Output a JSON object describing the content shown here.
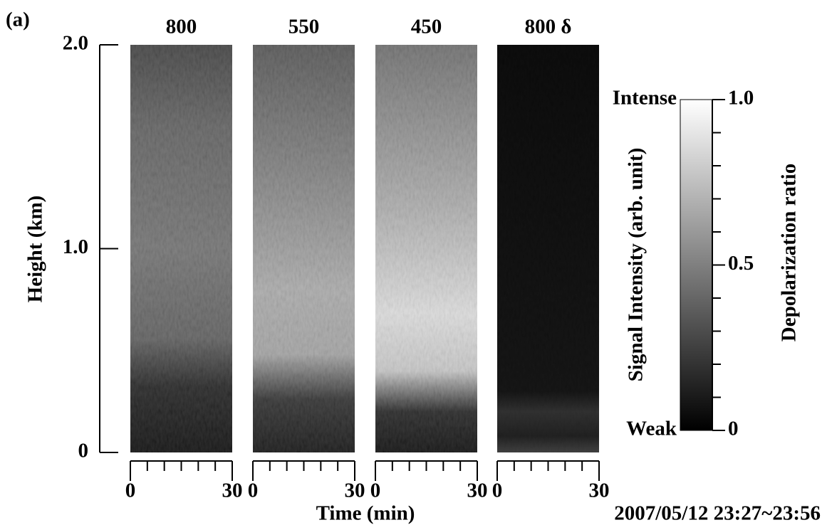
{
  "chart_data": {
    "type": "heatmap",
    "label": "(a)",
    "panels": [
      "800",
      "550",
      "450",
      "800 δ"
    ],
    "ylabel": "Height (km)",
    "ylim": [
      0,
      2.0
    ],
    "yticks": [
      0,
      {
        "value": 1,
        "label": "1.0"
      },
      {
        "value": 2,
        "label": "2.0"
      }
    ],
    "xlabel": "Time (min)",
    "xlim": [
      0,
      30
    ],
    "xticks": [
      0,
      30
    ],
    "xminorticks": [
      5,
      10,
      15,
      20,
      25
    ],
    "colorbar": {
      "left_label": "Signal Intensity (arb. unit)",
      "top_label": "Intense",
      "bottom_label": "Weak",
      "right_label": "Depolarization ratio",
      "lim": [
        0,
        1
      ],
      "ticks": [
        0,
        {
          "value": 0.5,
          "label": "0.5"
        },
        {
          "value": 1,
          "label": "1.0"
        }
      ],
      "minorticks": [
        0.1,
        0.2,
        0.3,
        0.4,
        0.6,
        0.7,
        0.8,
        0.9
      ]
    },
    "timestamp": "2007/05/12 23:27~23:56"
  }
}
